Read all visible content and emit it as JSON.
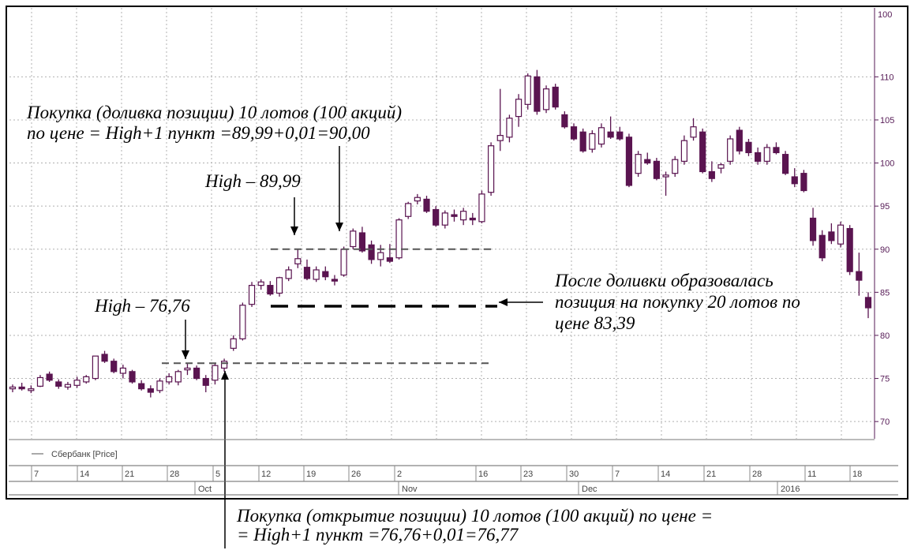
{
  "chart_data": {
    "type": "candlestick",
    "instrument_legend": "Сбербанк [Price]",
    "y_axis": {
      "range": [
        68,
        118
      ],
      "ticks": [
        70,
        75,
        80,
        85,
        90,
        95,
        100,
        105,
        110
      ],
      "top_label": "100"
    },
    "x_axis": {
      "day_ticks": [
        "7",
        "14",
        "21",
        "28",
        "5",
        "12",
        "19",
        "26",
        "2",
        "16",
        "23",
        "30",
        "7",
        "14",
        "21",
        "28",
        "11",
        "18"
      ],
      "month_labels": [
        "Oct",
        "Nov",
        "Dec",
        "2016"
      ]
    },
    "candles": [
      {
        "o": 73.8,
        "h": 74.3,
        "l": 73.4,
        "c": 74.0
      },
      {
        "o": 74.0,
        "h": 74.5,
        "l": 73.6,
        "c": 73.8
      },
      {
        "o": 73.6,
        "h": 74.2,
        "l": 73.3,
        "c": 73.8
      },
      {
        "o": 74.1,
        "h": 75.4,
        "l": 74.0,
        "c": 75.1
      },
      {
        "o": 75.5,
        "h": 75.8,
        "l": 74.6,
        "c": 74.8
      },
      {
        "o": 74.6,
        "h": 74.9,
        "l": 73.8,
        "c": 74.1
      },
      {
        "o": 74.0,
        "h": 74.6,
        "l": 73.7,
        "c": 74.3
      },
      {
        "o": 74.2,
        "h": 75.2,
        "l": 73.9,
        "c": 74.8
      },
      {
        "o": 74.6,
        "h": 75.4,
        "l": 74.4,
        "c": 75.2
      },
      {
        "o": 75.0,
        "h": 77.6,
        "l": 74.8,
        "c": 77.6
      },
      {
        "o": 77.8,
        "h": 78.2,
        "l": 76.8,
        "c": 77.0
      },
      {
        "o": 77.0,
        "h": 77.3,
        "l": 75.6,
        "c": 75.8
      },
      {
        "o": 75.6,
        "h": 76.6,
        "l": 75.0,
        "c": 76.2
      },
      {
        "o": 75.8,
        "h": 76.0,
        "l": 74.4,
        "c": 74.6
      },
      {
        "o": 74.4,
        "h": 74.8,
        "l": 73.6,
        "c": 73.8
      },
      {
        "o": 73.8,
        "h": 74.2,
        "l": 72.8,
        "c": 73.4
      },
      {
        "o": 73.6,
        "h": 75.0,
        "l": 73.3,
        "c": 74.7
      },
      {
        "o": 74.6,
        "h": 75.6,
        "l": 74.3,
        "c": 75.2
      },
      {
        "o": 74.6,
        "h": 76.0,
        "l": 74.2,
        "c": 75.8
      },
      {
        "o": 76.0,
        "h": 76.76,
        "l": 75.4,
        "c": 76.2
      },
      {
        "o": 76.2,
        "h": 76.5,
        "l": 74.8,
        "c": 75.0
      },
      {
        "o": 75.0,
        "h": 75.4,
        "l": 73.4,
        "c": 74.2
      },
      {
        "o": 74.8,
        "h": 76.8,
        "l": 74.3,
        "c": 76.5
      },
      {
        "o": 76.2,
        "h": 77.3,
        "l": 75.8,
        "c": 77.0
      },
      {
        "o": 78.5,
        "h": 80.0,
        "l": 78.2,
        "c": 79.6
      },
      {
        "o": 79.6,
        "h": 83.8,
        "l": 79.4,
        "c": 83.5
      },
      {
        "o": 83.6,
        "h": 86.2,
        "l": 83.3,
        "c": 85.8
      },
      {
        "o": 85.8,
        "h": 86.5,
        "l": 85.3,
        "c": 86.2
      },
      {
        "o": 85.8,
        "h": 86.3,
        "l": 84.6,
        "c": 84.8
      },
      {
        "o": 84.9,
        "h": 86.8,
        "l": 84.5,
        "c": 86.7
      },
      {
        "o": 86.6,
        "h": 88.0,
        "l": 86.3,
        "c": 87.6
      },
      {
        "o": 88.3,
        "h": 89.99,
        "l": 87.8,
        "c": 88.9
      },
      {
        "o": 87.9,
        "h": 88.8,
        "l": 86.4,
        "c": 86.6
      },
      {
        "o": 86.5,
        "h": 88.0,
        "l": 86.2,
        "c": 87.6
      },
      {
        "o": 87.4,
        "h": 88.0,
        "l": 86.4,
        "c": 86.8
      },
      {
        "o": 86.5,
        "h": 87.0,
        "l": 85.8,
        "c": 86.3
      },
      {
        "o": 87.0,
        "h": 90.3,
        "l": 86.8,
        "c": 90.0
      },
      {
        "o": 90.3,
        "h": 92.4,
        "l": 90.0,
        "c": 92.1
      },
      {
        "o": 91.9,
        "h": 92.6,
        "l": 89.6,
        "c": 89.8
      },
      {
        "o": 90.5,
        "h": 91.0,
        "l": 88.3,
        "c": 88.8
      },
      {
        "o": 88.8,
        "h": 90.5,
        "l": 88.0,
        "c": 89.6
      },
      {
        "o": 89.0,
        "h": 90.6,
        "l": 88.4,
        "c": 88.6
      },
      {
        "o": 89.0,
        "h": 93.6,
        "l": 88.8,
        "c": 93.4
      },
      {
        "o": 93.8,
        "h": 95.5,
        "l": 93.5,
        "c": 95.3
      },
      {
        "o": 95.6,
        "h": 96.4,
        "l": 95.2,
        "c": 96.0
      },
      {
        "o": 95.8,
        "h": 96.2,
        "l": 94.2,
        "c": 94.4
      },
      {
        "o": 94.6,
        "h": 95.0,
        "l": 92.6,
        "c": 92.8
      },
      {
        "o": 92.8,
        "h": 94.5,
        "l": 92.4,
        "c": 94.2
      },
      {
        "o": 94.0,
        "h": 94.6,
        "l": 93.2,
        "c": 93.8
      },
      {
        "o": 93.4,
        "h": 94.8,
        "l": 92.8,
        "c": 94.4
      },
      {
        "o": 93.6,
        "h": 94.2,
        "l": 92.8,
        "c": 93.4
      },
      {
        "o": 93.2,
        "h": 96.8,
        "l": 93.0,
        "c": 96.4
      },
      {
        "o": 96.6,
        "h": 102.4,
        "l": 96.2,
        "c": 102.0
      },
      {
        "o": 102.6,
        "h": 108.6,
        "l": 101.4,
        "c": 103.2
      },
      {
        "o": 103.0,
        "h": 105.6,
        "l": 102.4,
        "c": 105.2
      },
      {
        "o": 105.4,
        "h": 108.0,
        "l": 104.2,
        "c": 107.4
      },
      {
        "o": 106.8,
        "h": 110.4,
        "l": 106.2,
        "c": 110.1
      },
      {
        "o": 110.0,
        "h": 110.8,
        "l": 105.6,
        "c": 106.0
      },
      {
        "o": 106.2,
        "h": 109.0,
        "l": 105.8,
        "c": 108.6
      },
      {
        "o": 108.8,
        "h": 109.2,
        "l": 106.2,
        "c": 106.5
      },
      {
        "o": 105.6,
        "h": 106.0,
        "l": 104.0,
        "c": 104.2
      },
      {
        "o": 104.2,
        "h": 104.6,
        "l": 102.6,
        "c": 102.8
      },
      {
        "o": 103.6,
        "h": 104.0,
        "l": 101.2,
        "c": 101.4
      },
      {
        "o": 101.6,
        "h": 103.8,
        "l": 101.2,
        "c": 103.4
      },
      {
        "o": 102.2,
        "h": 104.6,
        "l": 101.8,
        "c": 104.1
      },
      {
        "o": 103.6,
        "h": 105.4,
        "l": 102.8,
        "c": 103.0
      },
      {
        "o": 103.6,
        "h": 104.2,
        "l": 102.6,
        "c": 102.8
      },
      {
        "o": 103.0,
        "h": 103.4,
        "l": 97.2,
        "c": 97.4
      },
      {
        "o": 98.8,
        "h": 101.4,
        "l": 98.4,
        "c": 101.0
      },
      {
        "o": 100.4,
        "h": 101.2,
        "l": 99.8,
        "c": 100.0
      },
      {
        "o": 100.2,
        "h": 100.6,
        "l": 98.0,
        "c": 98.2
      },
      {
        "o": 98.4,
        "h": 99.0,
        "l": 96.2,
        "c": 98.6
      },
      {
        "o": 98.8,
        "h": 100.8,
        "l": 98.4,
        "c": 100.4
      },
      {
        "o": 100.2,
        "h": 103.2,
        "l": 99.8,
        "c": 102.6
      },
      {
        "o": 103.0,
        "h": 105.2,
        "l": 102.6,
        "c": 104.2
      },
      {
        "o": 103.6,
        "h": 104.0,
        "l": 98.8,
        "c": 99.0
      },
      {
        "o": 99.0,
        "h": 100.2,
        "l": 97.8,
        "c": 98.2
      },
      {
        "o": 99.4,
        "h": 100.0,
        "l": 98.8,
        "c": 99.8
      },
      {
        "o": 100.2,
        "h": 103.2,
        "l": 99.8,
        "c": 102.8
      },
      {
        "o": 103.8,
        "h": 104.2,
        "l": 101.0,
        "c": 101.4
      },
      {
        "o": 102.4,
        "h": 102.8,
        "l": 100.8,
        "c": 101.2
      },
      {
        "o": 101.2,
        "h": 101.8,
        "l": 99.8,
        "c": 100.2
      },
      {
        "o": 100.2,
        "h": 102.2,
        "l": 99.8,
        "c": 101.8
      },
      {
        "o": 101.8,
        "h": 102.4,
        "l": 101.0,
        "c": 101.2
      },
      {
        "o": 101.0,
        "h": 101.4,
        "l": 98.6,
        "c": 98.8
      },
      {
        "o": 98.4,
        "h": 99.4,
        "l": 97.2,
        "c": 97.6
      },
      {
        "o": 98.8,
        "h": 99.2,
        "l": 96.6,
        "c": 96.8
      },
      {
        "o": 93.6,
        "h": 94.8,
        "l": 90.4,
        "c": 91.0
      },
      {
        "o": 91.6,
        "h": 92.2,
        "l": 88.6,
        "c": 89.0
      },
      {
        "o": 92.0,
        "h": 93.0,
        "l": 90.6,
        "c": 91.0
      },
      {
        "o": 90.6,
        "h": 93.2,
        "l": 90.2,
        "c": 92.8
      },
      {
        "o": 92.4,
        "h": 92.8,
        "l": 87.0,
        "c": 87.4
      },
      {
        "o": 87.4,
        "h": 89.6,
        "l": 84.6,
        "c": 86.4
      },
      {
        "o": 84.4,
        "h": 85.0,
        "l": 82.0,
        "c": 83.2
      }
    ],
    "lines": [
      {
        "y": 76.77,
        "style": "dashed"
      },
      {
        "y": 90.0,
        "style": "dashed"
      },
      {
        "y": 83.39,
        "style": "long-dashed"
      }
    ]
  },
  "annotations": {
    "buy_add_line1": "Покупка (доливка позиции) 10 лотов (100 акций)",
    "buy_add_line2": "по цене = High+1 пункт =89,99+0,01=90,00",
    "high_2": "High – 89,99",
    "high_1": "High – 76,76",
    "after_add_line1": "После доливки образовалась",
    "after_add_line2": "позиция на покупку 20 лотов по",
    "after_add_line3": "цене 83,39",
    "open_line1": "Покупка (открытие позиции) 10 лотов (100 акций) по цене =",
    "open_line2": "= High+1 пункт =76,76+0,01=76,77"
  },
  "colors": {
    "bear_body": "#5a1450",
    "bull_body": "#ffffff",
    "candle_outline": "#5a1450",
    "y_axis_text": "#551a55",
    "grid": "#b0b0b0"
  }
}
